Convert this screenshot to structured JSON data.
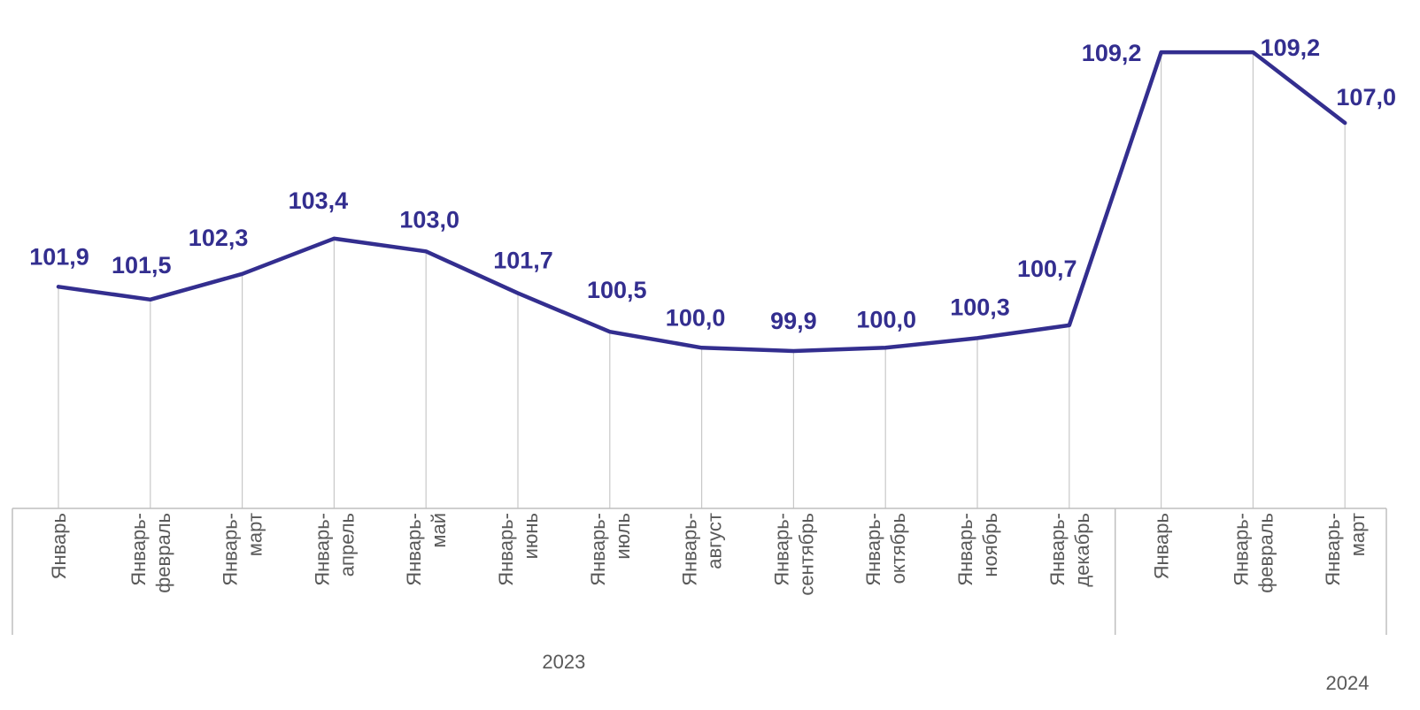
{
  "chart_data": {
    "type": "line",
    "series": [
      {
        "values": [
          101.9,
          101.5,
          102.3,
          103.4,
          103.0,
          101.7,
          100.5,
          100.0,
          99.9,
          100.0,
          100.3,
          100.7,
          109.2,
          109.2,
          107.0
        ],
        "labels": [
          "101,9",
          "101,5",
          "102,3",
          "103,4",
          "103,0",
          "101,7",
          "100,5",
          "100,0",
          "99,9",
          "100,0",
          "100,3",
          "100,7",
          "109,2",
          "109,2",
          "107,0"
        ],
        "color": "#332e8f"
      }
    ],
    "categories": [
      [
        "Январь"
      ],
      [
        "Январь-",
        "февраль"
      ],
      [
        "Январь-",
        "март"
      ],
      [
        "Январь-",
        "апрель"
      ],
      [
        "Январь-",
        "май"
      ],
      [
        "Январь-",
        "июнь"
      ],
      [
        "Январь-",
        "июль"
      ],
      [
        "Январь-",
        "август"
      ],
      [
        "Январь-",
        "сентябрь"
      ],
      [
        "Январь-",
        "октябрь"
      ],
      [
        "Январь-",
        "ноябрь"
      ],
      [
        "Январь-",
        "декабрь"
      ],
      [
        "Январь"
      ],
      [
        "Январь-",
        "февраль"
      ],
      [
        "Январь-",
        "март"
      ]
    ],
    "groups": [
      {
        "label": "2023",
        "count": 12
      },
      {
        "label": "2024",
        "count": 3
      }
    ],
    "ylim": [
      95,
      110
    ],
    "grid": {
      "vertical_drop_lines": true,
      "horizontal": false
    },
    "line_color": "#332e8f",
    "label_color": "#332e8f",
    "axis_text_color": "#595959",
    "drop_line_color": "#c8c8c8"
  }
}
